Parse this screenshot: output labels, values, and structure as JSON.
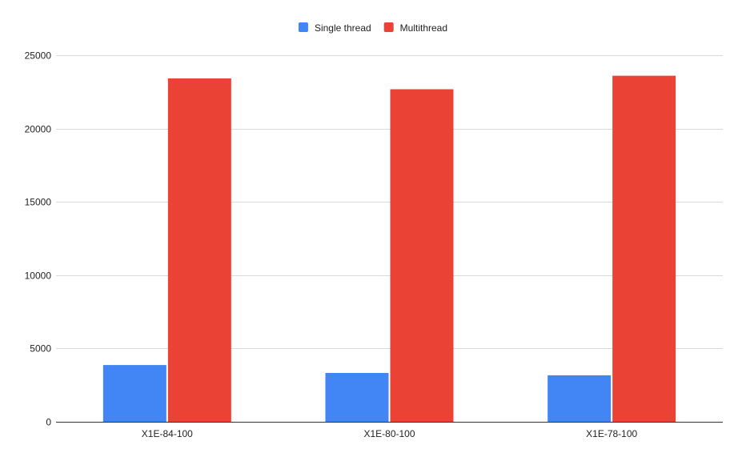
{
  "chart_data": {
    "type": "bar",
    "title": "",
    "xlabel": "",
    "ylabel": "",
    "categories": [
      "X1E-84-100",
      "X1E-80-100",
      "X1E-78-100"
    ],
    "series": [
      {
        "name": "Single thread",
        "color": "#4285f4",
        "values": [
          3870,
          3330,
          3170
        ]
      },
      {
        "name": "Multithread",
        "color": "#ea4335",
        "values": [
          23420,
          22680,
          23600
        ]
      }
    ],
    "ylim": [
      0,
      25000
    ],
    "yticks": [
      0,
      5000,
      10000,
      15000,
      20000,
      25000
    ],
    "grid": true,
    "legend_position": "top-center"
  }
}
